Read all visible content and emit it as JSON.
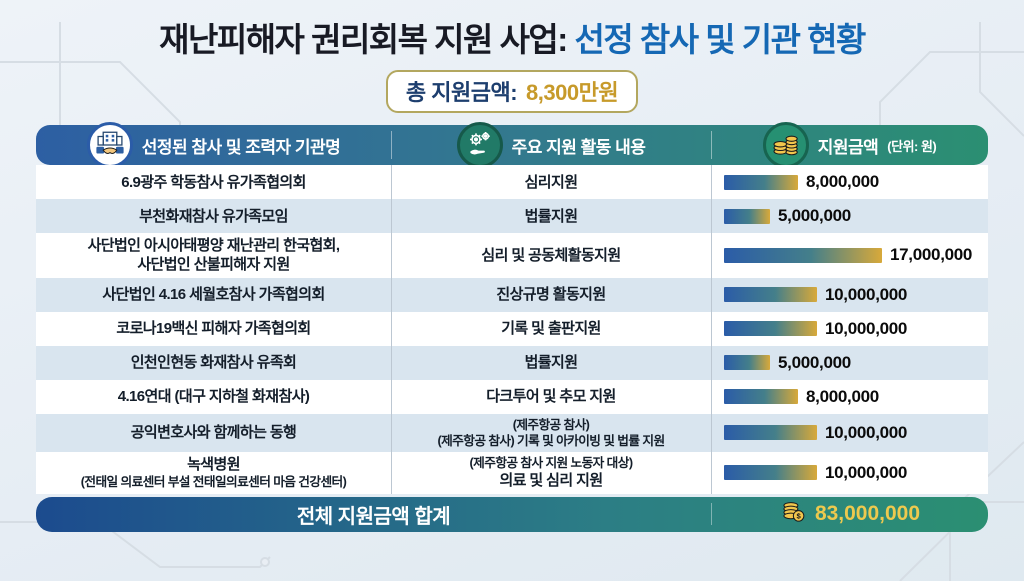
{
  "title": {
    "part1": "재난피해자 권리회복 지원 사업:",
    "part2": "선정 참사 및 기관 현황"
  },
  "badge": {
    "label": "총 지원금액:",
    "value": "8,300만원"
  },
  "header": {
    "col_org": "선정된 참사 및 조력자 기관명",
    "col_activity": "주요 지원 활동 내용",
    "col_amount": "지원금액",
    "col_amount_unit": "(단위: 원)",
    "icons": {
      "org": "building-handshake-icon",
      "activity": "hand-gears-icon",
      "amount": "coins-icon"
    }
  },
  "rows": [
    {
      "org": [
        "6.9광주 학동참사 유가족협의회"
      ],
      "activity": [
        "심리지원"
      ],
      "amount": "8,000,000",
      "value": 8000000
    },
    {
      "org": [
        "부천화재참사 유가족모임"
      ],
      "activity": [
        "법률지원"
      ],
      "amount": "5,000,000",
      "value": 5000000
    },
    {
      "org": [
        "사단법인 아시아태평양 재난관리 한국협회,",
        "사단법인 산불피해자 지원"
      ],
      "activity": [
        "심리 및 공동체활동지원"
      ],
      "amount": "17,000,000",
      "value": 17000000
    },
    {
      "org": [
        "사단법인 4.16 세월호참사 가족협의회"
      ],
      "activity": [
        "진상규명 활동지원"
      ],
      "amount": "10,000,000",
      "value": 10000000
    },
    {
      "org": [
        "코로나19백신 피해자 가족협의회"
      ],
      "activity": [
        "기록 및 출판지원"
      ],
      "amount": "10,000,000",
      "value": 10000000
    },
    {
      "org": [
        "인천인현동 화재참사 유족회"
      ],
      "activity": [
        "법률지원"
      ],
      "amount": "5,000,000",
      "value": 5000000
    },
    {
      "org": [
        "4.16연대 (대구 지하철 화재참사)"
      ],
      "activity": [
        "다크투어 및 추모 지원"
      ],
      "amount": "8,000,000",
      "value": 8000000
    },
    {
      "org": [
        "공익변호사와 함께하는 동행"
      ],
      "activity": [
        "(제주항공 참사)",
        "(제주항공 참사) 기록 및 아카이빙 및 법률 지원"
      ],
      "amount": "10,000,000",
      "value": 10000000
    },
    {
      "org": [
        "녹색병원",
        "(전태일 의료센터 부설 전태일의료센터 마음 건강센터)"
      ],
      "activity": [
        "(제주항공 참사 지원 노동자 대상)",
        "의료 및 심리 지원"
      ],
      "amount": "10,000,000",
      "value": 10000000
    }
  ],
  "footer": {
    "label": "전체 지원금액 합계",
    "total": "83,000,000",
    "icon": "coins-dollar-icon"
  },
  "colors": {
    "title_dark": "#181a24",
    "title_blue": "#1568b4",
    "badge_border": "#b3a75f",
    "badge_navy": "#1d3e6e",
    "badge_gold": "#c79a2a",
    "header_blue": "#2d5fa3",
    "header_teal": "#2b8f72",
    "row_alt": "#d9e5ef",
    "bar_blue": "#2b5ca8",
    "bar_gold": "#d8a93a",
    "footer_gold": "#edc94e"
  },
  "chart_data": {
    "type": "bar",
    "title": "재난피해자 권리회복 지원 사업: 선정 참사 및 기관 현황",
    "subtitle": "총 지원금액: 8,300만원",
    "categories": [
      "6.9광주 학동참사 유가족협의회",
      "부천화재참사 유가족모임",
      "사단법인 아시아태평양 재난관리 한국협회, 사단법인 산불피해자 지원",
      "사단법인 4.16 세월호참사 가족협의회",
      "코로나19백신 피해자 가족협의회",
      "인천인현동 화재참사 유족회",
      "4.16연대 (대구 지하철 화재참사)",
      "공익변호사와 함께하는 동행",
      "녹색병원 (전태일 의료센터 부설 전태일의료센터 마음 건강센터)"
    ],
    "values": [
      8000000,
      5000000,
      17000000,
      10000000,
      10000000,
      5000000,
      8000000,
      10000000,
      10000000
    ],
    "value_labels": [
      "8,000,000",
      "5,000,000",
      "17,000,000",
      "10,000,000",
      "10,000,000",
      "5,000,000",
      "8,000,000",
      "10,000,000",
      "10,000,000"
    ],
    "activities": [
      "심리지원",
      "법률지원",
      "심리 및 공동체활동지원",
      "진상규명 활동지원",
      "기록 및 출판지원",
      "법률지원",
      "다크투어 및 추모 지원",
      "(제주항공 참사) 기록 및 아카이빙 및 법률 지원",
      "(제주항공 참사 지원 노동자 대상) 의료 및 심리 지원"
    ],
    "total": 83000000,
    "unit": "원",
    "xlabel": "지원금액 (단위: 원)",
    "ylabel": "기관명",
    "xlim": [
      0,
      17000000
    ],
    "orientation": "horizontal",
    "grid": false,
    "legend": false
  }
}
